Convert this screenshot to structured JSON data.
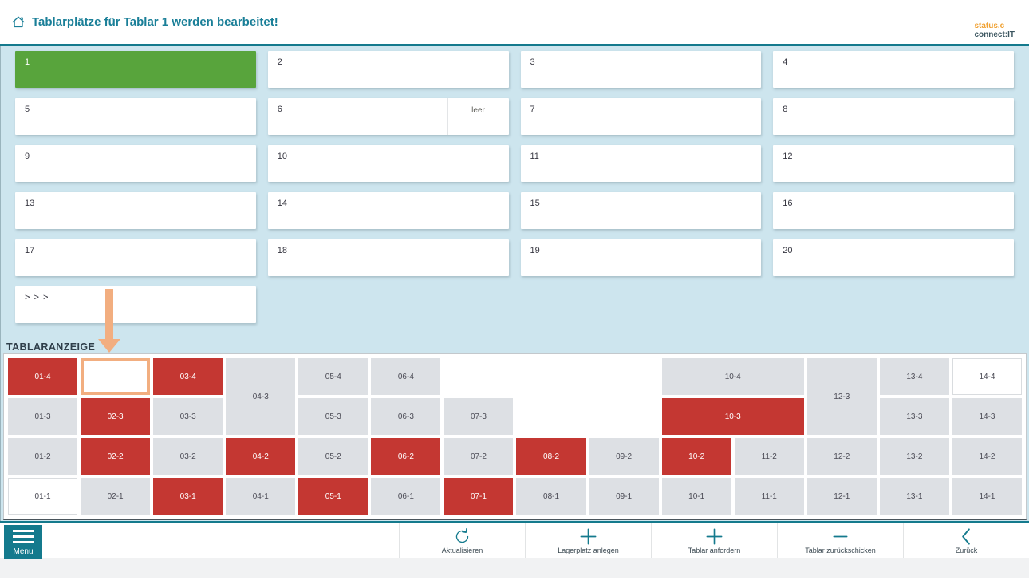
{
  "colors": {
    "accent-teal": "#147a8d",
    "title-teal": "#1a7f98",
    "bg-blue": "#cde5ee",
    "slot-green": "#58a43c",
    "cell-red": "#c43732",
    "cell-gray": "#dde0e4",
    "highlight-orange": "#f2ae80",
    "logo-orange": "#f0a132",
    "logo-dark": "#3b555f"
  },
  "header": {
    "title": "Tablarplätze für Tablar 1 werden bearbeitet!",
    "logo_line1": "status.c",
    "logo_line2": "connect:IT"
  },
  "slots": {
    "items": [
      {
        "label": "1",
        "state": "selected"
      },
      {
        "label": "2"
      },
      {
        "label": "3"
      },
      {
        "label": "4"
      },
      {
        "label": "5"
      },
      {
        "label": "6",
        "sub": "leer"
      },
      {
        "label": "7"
      },
      {
        "label": "8"
      },
      {
        "label": "9"
      },
      {
        "label": "10"
      },
      {
        "label": "11"
      },
      {
        "label": "12"
      },
      {
        "label": "13"
      },
      {
        "label": "14"
      },
      {
        "label": "15"
      },
      {
        "label": "16"
      },
      {
        "label": "17"
      },
      {
        "label": "18"
      },
      {
        "label": "19"
      },
      {
        "label": "20"
      },
      {
        "label": "> > >",
        "type": "more"
      }
    ]
  },
  "tablar": {
    "section_title": "TABLARANZEIGE",
    "cells": [
      {
        "label": "01-4",
        "col": 1,
        "row": 1,
        "variant": "red"
      },
      {
        "label": "",
        "col": 2,
        "row": 1,
        "variant": "highlight"
      },
      {
        "label": "03-4",
        "col": 3,
        "row": 1,
        "variant": "red"
      },
      {
        "label": "04-3",
        "col": 4,
        "row": 1,
        "rowspan": 2,
        "variant": "gray"
      },
      {
        "label": "05-4",
        "col": 5,
        "row": 1,
        "variant": "gray"
      },
      {
        "label": "06-4",
        "col": 6,
        "row": 1,
        "variant": "gray"
      },
      {
        "label": "10-4",
        "col": 10,
        "row": 1,
        "colspan": 2,
        "variant": "gray"
      },
      {
        "label": "12-3",
        "col": 12,
        "row": 1,
        "rowspan": 2,
        "variant": "gray"
      },
      {
        "label": "13-4",
        "col": 13,
        "row": 1,
        "variant": "gray"
      },
      {
        "label": "14-4",
        "col": 14,
        "row": 1,
        "variant": "white"
      },
      {
        "label": "01-3",
        "col": 1,
        "row": 2,
        "variant": "gray"
      },
      {
        "label": "02-3",
        "col": 2,
        "row": 2,
        "variant": "red"
      },
      {
        "label": "03-3",
        "col": 3,
        "row": 2,
        "variant": "gray"
      },
      {
        "label": "05-3",
        "col": 5,
        "row": 2,
        "variant": "gray"
      },
      {
        "label": "06-3",
        "col": 6,
        "row": 2,
        "variant": "gray"
      },
      {
        "label": "07-3",
        "col": 7,
        "row": 2,
        "variant": "gray"
      },
      {
        "label": "10-3",
        "col": 10,
        "row": 2,
        "colspan": 2,
        "variant": "red"
      },
      {
        "label": "13-3",
        "col": 13,
        "row": 2,
        "variant": "gray"
      },
      {
        "label": "14-3",
        "col": 14,
        "row": 2,
        "variant": "gray"
      },
      {
        "label": "01-2",
        "col": 1,
        "row": 3,
        "variant": "gray"
      },
      {
        "label": "02-2",
        "col": 2,
        "row": 3,
        "variant": "red"
      },
      {
        "label": "03-2",
        "col": 3,
        "row": 3,
        "variant": "gray"
      },
      {
        "label": "04-2",
        "col": 4,
        "row": 3,
        "variant": "red"
      },
      {
        "label": "05-2",
        "col": 5,
        "row": 3,
        "variant": "gray"
      },
      {
        "label": "06-2",
        "col": 6,
        "row": 3,
        "variant": "red"
      },
      {
        "label": "07-2",
        "col": 7,
        "row": 3,
        "variant": "gray"
      },
      {
        "label": "08-2",
        "col": 8,
        "row": 3,
        "variant": "red"
      },
      {
        "label": "09-2",
        "col": 9,
        "row": 3,
        "variant": "gray"
      },
      {
        "label": "10-2",
        "col": 10,
        "row": 3,
        "variant": "red"
      },
      {
        "label": "11-2",
        "col": 11,
        "row": 3,
        "variant": "gray"
      },
      {
        "label": "12-2",
        "col": 12,
        "row": 3,
        "variant": "gray"
      },
      {
        "label": "13-2",
        "col": 13,
        "row": 3,
        "variant": "gray"
      },
      {
        "label": "14-2",
        "col": 14,
        "row": 3,
        "variant": "gray"
      },
      {
        "label": "01-1",
        "col": 1,
        "row": 4,
        "variant": "white"
      },
      {
        "label": "02-1",
        "col": 2,
        "row": 4,
        "variant": "gray"
      },
      {
        "label": "03-1",
        "col": 3,
        "row": 4,
        "variant": "red"
      },
      {
        "label": "04-1",
        "col": 4,
        "row": 4,
        "variant": "gray"
      },
      {
        "label": "05-1",
        "col": 5,
        "row": 4,
        "variant": "red"
      },
      {
        "label": "06-1",
        "col": 6,
        "row": 4,
        "variant": "gray"
      },
      {
        "label": "07-1",
        "col": 7,
        "row": 4,
        "variant": "red"
      },
      {
        "label": "08-1",
        "col": 8,
        "row": 4,
        "variant": "gray"
      },
      {
        "label": "09-1",
        "col": 9,
        "row": 4,
        "variant": "gray"
      },
      {
        "label": "10-1",
        "col": 10,
        "row": 4,
        "variant": "gray"
      },
      {
        "label": "11-1",
        "col": 11,
        "row": 4,
        "variant": "gray"
      },
      {
        "label": "12-1",
        "col": 12,
        "row": 4,
        "variant": "gray"
      },
      {
        "label": "13-1",
        "col": 13,
        "row": 4,
        "variant": "gray"
      },
      {
        "label": "14-1",
        "col": 14,
        "row": 4,
        "variant": "gray"
      }
    ]
  },
  "toolbar": {
    "menu_label": "Menu",
    "actions": [
      {
        "label": "Aktualisieren",
        "icon": "refresh-icon"
      },
      {
        "label": "Lagerplatz anlegen",
        "icon": "plus-icon"
      },
      {
        "label": "Tablar anfordern",
        "icon": "plus-icon"
      },
      {
        "label": "Tablar zurückschicken",
        "icon": "minus-icon"
      },
      {
        "label": "Zurück",
        "icon": "chevron-left-icon"
      }
    ]
  }
}
